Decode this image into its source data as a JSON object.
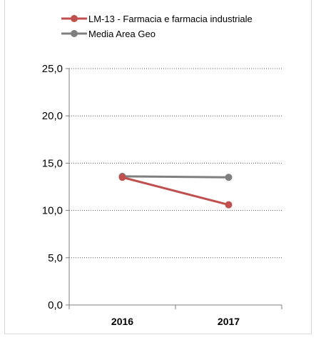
{
  "chart_data": {
    "type": "line",
    "categories": [
      "2016",
      "2017"
    ],
    "series": [
      {
        "name": "LM-13 - Farmacia e farmacia industriale",
        "values": [
          13.5,
          10.6
        ],
        "color": "#c0504d"
      },
      {
        "name": "Media Area Geo",
        "values": [
          13.6,
          13.5
        ],
        "color": "#7f7f7f"
      }
    ],
    "ylim": [
      0,
      25
    ],
    "yticks": [
      0,
      5,
      10,
      15,
      20,
      25
    ],
    "ytick_labels": [
      "0,0",
      "5,0",
      "10,0",
      "15,0",
      "20,0",
      "25,0"
    ],
    "grid": "horizontal dotted",
    "legend_position": "top"
  }
}
